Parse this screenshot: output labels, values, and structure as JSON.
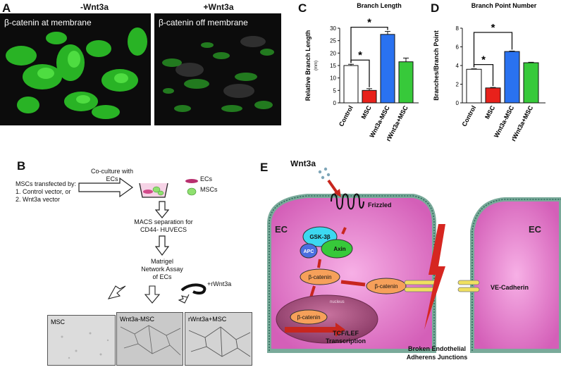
{
  "panels": {
    "a": {
      "letter": "A",
      "left": {
        "title": "-Wnt3a",
        "label": "β-catenin at membrane"
      },
      "right": {
        "title": "+Wnt3a",
        "label": "β-catenin off membrane"
      }
    },
    "b": {
      "letter": "B",
      "transfected": [
        "MSCs transfected by:",
        "1. Control vector, or",
        "2. Wnt3a vector"
      ],
      "coculture": [
        "Co-culture with",
        "ECs"
      ],
      "legend": {
        "ec": "ECs",
        "msc": "MSCs"
      },
      "macs": [
        "MACS separation for",
        "CD44- HUVECS"
      ],
      "matrigel": [
        "Matrigel",
        "Network Assay",
        "of ECs"
      ],
      "rwnt": "+rWnt3a",
      "thumbs": [
        "MSC",
        "Wnt3a-MSC",
        "rWnt3a+MSC"
      ]
    },
    "e": {
      "letter": "E",
      "wnt3a": "Wnt3a",
      "frizzled": "Frizzled",
      "ec_left": "EC",
      "ec_right": "EC",
      "gsk": "GSK-3β",
      "axin": "Axin",
      "apc": "APC",
      "bcat1": "β-catenin",
      "bcat2": "β-catenin",
      "bcat3": "β-catenin",
      "nucleus": "nucleus",
      "tcf": "TCF/LEF",
      "transcription": "Transcription",
      "vecad": "VE-Cadherin",
      "broken": [
        "Broken Endothelial",
        "Adherens Junctions"
      ]
    }
  },
  "chart_data": [
    {
      "letter": "C",
      "type": "bar",
      "title": "Branch Length",
      "ylabel": "Relative Branch Length",
      "yunit": "(mm)",
      "categories": [
        "Control",
        "MSC",
        "Wnt3a-MSC",
        "rWnt3a+MSC"
      ],
      "values": [
        15,
        5,
        27.5,
        16.5
      ],
      "errors": [
        0.5,
        0.7,
        1.2,
        1.5
      ],
      "colors": [
        "#ffffff",
        "#e8211b",
        "#2a72f0",
        "#37c93a"
      ],
      "ylim": [
        0,
        30
      ],
      "yticks": [
        0,
        5,
        10,
        15,
        20,
        25,
        30
      ],
      "significance": [
        {
          "from": 0,
          "to": 1,
          "label": "*"
        },
        {
          "from": 0,
          "to": 2,
          "label": "*"
        }
      ]
    },
    {
      "letter": "D",
      "type": "bar",
      "title": "Branch Point Number",
      "ylabel": "Branches/Branch Point",
      "categories": [
        "Control",
        "MSC",
        "Wnt3a-MSC",
        "rWnt3a+MSC"
      ],
      "values": [
        3.6,
        1.6,
        5.5,
        4.3
      ],
      "errors": [
        0.05,
        0.05,
        0.05,
        0.05
      ],
      "colors": [
        "#ffffff",
        "#e8211b",
        "#2a72f0",
        "#37c93a"
      ],
      "ylim": [
        0,
        8
      ],
      "yticks": [
        0,
        2,
        4,
        6,
        8
      ],
      "significance": [
        {
          "from": 0,
          "to": 1,
          "label": "*"
        },
        {
          "from": 0,
          "to": 2,
          "label": "*"
        }
      ]
    }
  ]
}
